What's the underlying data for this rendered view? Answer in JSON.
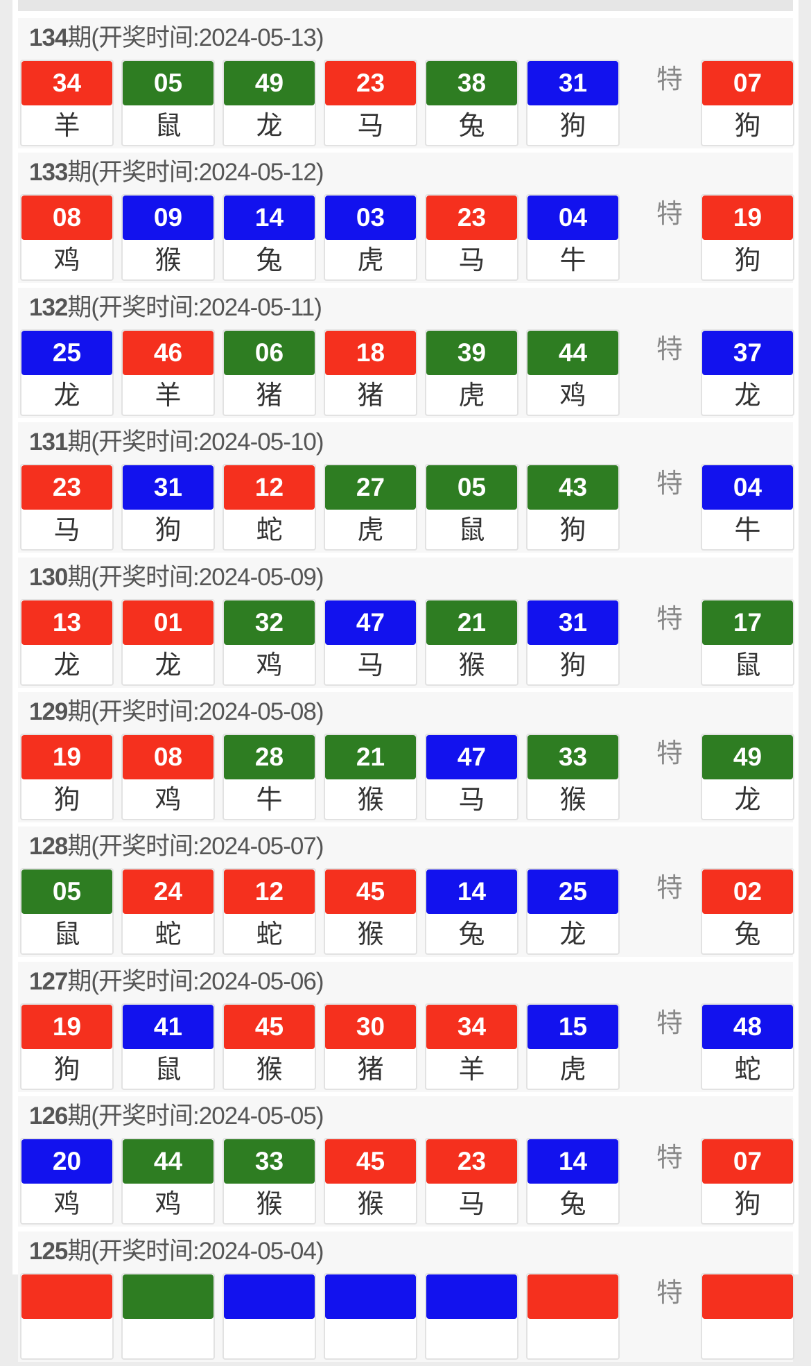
{
  "colors": {
    "red": "#f5301e",
    "green": "#2e7d22",
    "blue": "#1212ee"
  },
  "special_label": "特",
  "draws": [
    {
      "issue": "134",
      "title": "期(开奖时间:2024-05-13)",
      "balls": [
        [
          "34",
          "羊",
          "red"
        ],
        [
          "05",
          "鼠",
          "green"
        ],
        [
          "49",
          "龙",
          "green"
        ],
        [
          "23",
          "马",
          "red"
        ],
        [
          "38",
          "兔",
          "green"
        ],
        [
          "31",
          "狗",
          "blue"
        ]
      ],
      "special": [
        "07",
        "狗",
        "red"
      ]
    },
    {
      "issue": "133",
      "title": "期(开奖时间:2024-05-12)",
      "balls": [
        [
          "08",
          "鸡",
          "red"
        ],
        [
          "09",
          "猴",
          "blue"
        ],
        [
          "14",
          "兔",
          "blue"
        ],
        [
          "03",
          "虎",
          "blue"
        ],
        [
          "23",
          "马",
          "red"
        ],
        [
          "04",
          "牛",
          "blue"
        ]
      ],
      "special": [
        "19",
        "狗",
        "red"
      ]
    },
    {
      "issue": "132",
      "title": "期(开奖时间:2024-05-11)",
      "balls": [
        [
          "25",
          "龙",
          "blue"
        ],
        [
          "46",
          "羊",
          "red"
        ],
        [
          "06",
          "猪",
          "green"
        ],
        [
          "18",
          "猪",
          "red"
        ],
        [
          "39",
          "虎",
          "green"
        ],
        [
          "44",
          "鸡",
          "green"
        ]
      ],
      "special": [
        "37",
        "龙",
        "blue"
      ]
    },
    {
      "issue": "131",
      "title": "期(开奖时间:2024-05-10)",
      "balls": [
        [
          "23",
          "马",
          "red"
        ],
        [
          "31",
          "狗",
          "blue"
        ],
        [
          "12",
          "蛇",
          "red"
        ],
        [
          "27",
          "虎",
          "green"
        ],
        [
          "05",
          "鼠",
          "green"
        ],
        [
          "43",
          "狗",
          "green"
        ]
      ],
      "special": [
        "04",
        "牛",
        "blue"
      ]
    },
    {
      "issue": "130",
      "title": "期(开奖时间:2024-05-09)",
      "balls": [
        [
          "13",
          "龙",
          "red"
        ],
        [
          "01",
          "龙",
          "red"
        ],
        [
          "32",
          "鸡",
          "green"
        ],
        [
          "47",
          "马",
          "blue"
        ],
        [
          "21",
          "猴",
          "green"
        ],
        [
          "31",
          "狗",
          "blue"
        ]
      ],
      "special": [
        "17",
        "鼠",
        "green"
      ]
    },
    {
      "issue": "129",
      "title": "期(开奖时间:2024-05-08)",
      "balls": [
        [
          "19",
          "狗",
          "red"
        ],
        [
          "08",
          "鸡",
          "red"
        ],
        [
          "28",
          "牛",
          "green"
        ],
        [
          "21",
          "猴",
          "green"
        ],
        [
          "47",
          "马",
          "blue"
        ],
        [
          "33",
          "猴",
          "green"
        ]
      ],
      "special": [
        "49",
        "龙",
        "green"
      ]
    },
    {
      "issue": "128",
      "title": "期(开奖时间:2024-05-07)",
      "balls": [
        [
          "05",
          "鼠",
          "green"
        ],
        [
          "24",
          "蛇",
          "red"
        ],
        [
          "12",
          "蛇",
          "red"
        ],
        [
          "45",
          "猴",
          "red"
        ],
        [
          "14",
          "兔",
          "blue"
        ],
        [
          "25",
          "龙",
          "blue"
        ]
      ],
      "special": [
        "02",
        "兔",
        "red"
      ]
    },
    {
      "issue": "127",
      "title": "期(开奖时间:2024-05-06)",
      "balls": [
        [
          "19",
          "狗",
          "red"
        ],
        [
          "41",
          "鼠",
          "blue"
        ],
        [
          "45",
          "猴",
          "red"
        ],
        [
          "30",
          "猪",
          "red"
        ],
        [
          "34",
          "羊",
          "red"
        ],
        [
          "15",
          "虎",
          "blue"
        ]
      ],
      "special": [
        "48",
        "蛇",
        "blue"
      ]
    },
    {
      "issue": "126",
      "title": "期(开奖时间:2024-05-05)",
      "balls": [
        [
          "20",
          "鸡",
          "blue"
        ],
        [
          "44",
          "鸡",
          "green"
        ],
        [
          "33",
          "猴",
          "green"
        ],
        [
          "45",
          "猴",
          "red"
        ],
        [
          "23",
          "马",
          "red"
        ],
        [
          "14",
          "兔",
          "blue"
        ]
      ],
      "special": [
        "07",
        "狗",
        "red"
      ]
    },
    {
      "issue": "125",
      "title": "期(开奖时间:2024-05-04)",
      "balls": [
        [
          "",
          "",
          "red"
        ],
        [
          "",
          "",
          "green"
        ],
        [
          "",
          "",
          "blue"
        ],
        [
          "",
          "",
          "blue"
        ],
        [
          "",
          "",
          "blue"
        ],
        [
          "",
          "",
          "red"
        ]
      ],
      "special": [
        "",
        "",
        "red"
      ]
    }
  ]
}
